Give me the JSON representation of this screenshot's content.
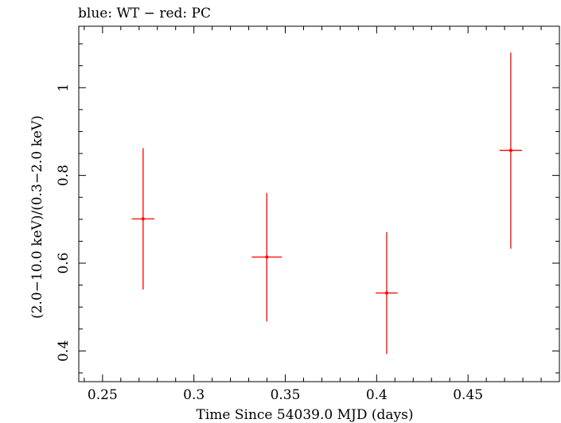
{
  "chart_data": {
    "type": "scatter",
    "title": "blue: WT − red: PC",
    "xlabel": "Time Since 54039.0 MJD (days)",
    "ylabel": "(2.0−10.0 keV)/(0.3−2.0 keV)",
    "xlim": [
      0.237,
      0.5
    ],
    "ylim": [
      0.33,
      1.14
    ],
    "xticks": [
      0.25,
      0.3,
      0.35,
      0.4,
      0.45
    ],
    "xtick_labels": [
      "0.25",
      "0.3",
      "0.35",
      "0.4",
      "0.45"
    ],
    "yticks": [
      0.4,
      0.6,
      0.8,
      1.0
    ],
    "ytick_labels": [
      "0.4",
      "0.6",
      "0.8",
      "1"
    ],
    "grid": false,
    "series": [
      {
        "color": "#ff0000",
        "points": [
          {
            "x": 0.2722,
            "y": 0.701,
            "xerr": 0.0062,
            "yerr_low": 0.161,
            "yerr_high": 0.161
          },
          {
            "x": 0.3399,
            "y": 0.614,
            "xerr": 0.0083,
            "yerr_low": 0.147,
            "yerr_high": 0.146
          },
          {
            "x": 0.4055,
            "y": 0.532,
            "xerr": 0.006,
            "yerr_low": 0.139,
            "yerr_high": 0.139
          },
          {
            "x": 0.4734,
            "y": 0.857,
            "xerr": 0.0061,
            "yerr_low": 0.224,
            "yerr_high": 0.223
          }
        ]
      }
    ]
  }
}
